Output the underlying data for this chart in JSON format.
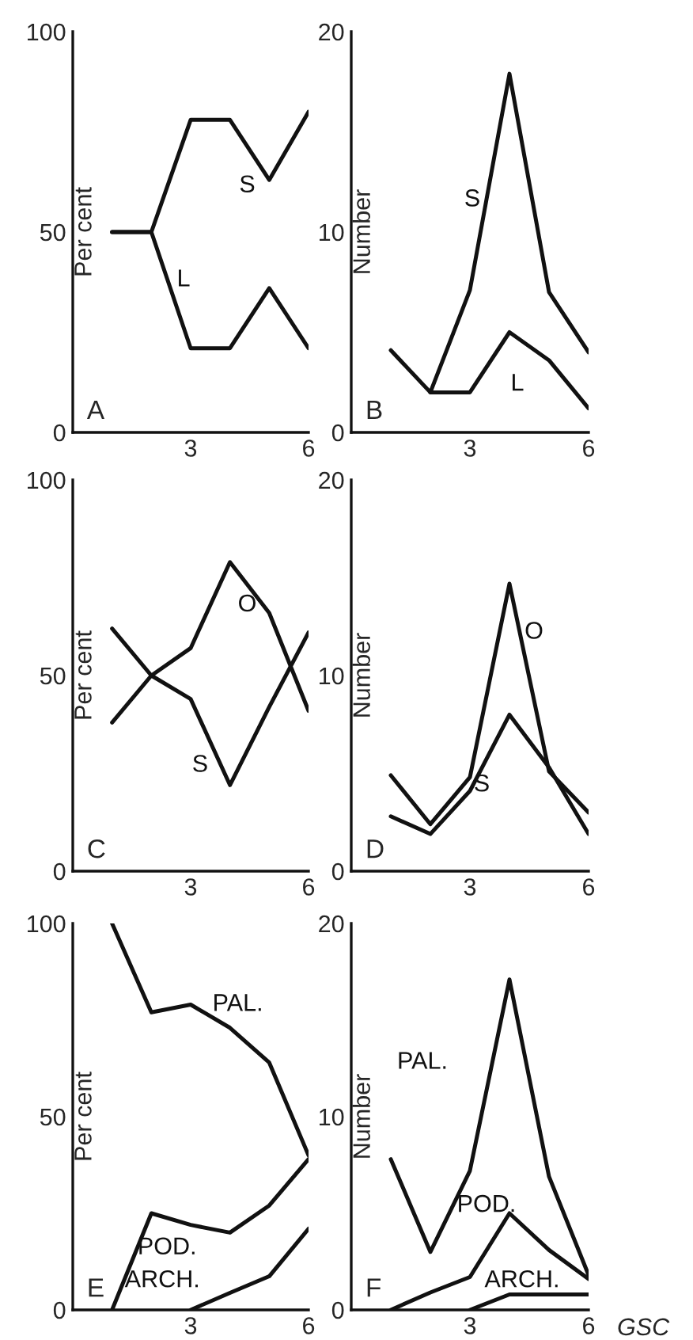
{
  "chart_data": [
    {
      "type": "line",
      "ylabel": "Per cent",
      "x": [
        1,
        2,
        3,
        4,
        5,
        6
      ],
      "xlim": [
        0,
        6
      ],
      "xticks": [
        3,
        6
      ],
      "ylim": [
        0,
        100
      ],
      "yticks": [
        0,
        50,
        100
      ],
      "grid": false,
      "legend": false,
      "annotations": [
        "A"
      ],
      "series": [
        {
          "name": "S",
          "color": "#111111",
          "values": [
            50,
            50,
            78,
            78,
            63,
            80
          ]
        },
        {
          "name": "L",
          "color": "#111111",
          "values": [
            50,
            50,
            21,
            21,
            36,
            21
          ]
        }
      ]
    },
    {
      "type": "line",
      "ylabel": "Number",
      "x": [
        1,
        2,
        3,
        4,
        5,
        6
      ],
      "xlim": [
        0,
        6
      ],
      "xticks": [
        3,
        6
      ],
      "ylim": [
        0,
        20
      ],
      "yticks": [
        0,
        10,
        20
      ],
      "grid": false,
      "legend": false,
      "annotations": [
        "B"
      ],
      "series": [
        {
          "name": "S",
          "color": "#111111",
          "values": [
            null,
            2,
            7.1,
            17.9,
            7,
            4
          ]
        },
        {
          "name": "L",
          "color": "#111111",
          "values": [
            4.1,
            2,
            2,
            5,
            3.6,
            1.2
          ]
        }
      ]
    },
    {
      "type": "line",
      "ylabel": "Per cent",
      "x": [
        1,
        2,
        3,
        4,
        5,
        6
      ],
      "xlim": [
        0,
        6
      ],
      "xticks": [
        3,
        6
      ],
      "ylim": [
        0,
        100
      ],
      "yticks": [
        0,
        50,
        100
      ],
      "grid": false,
      "legend": false,
      "annotations": [
        "C"
      ],
      "series": [
        {
          "name": "O",
          "color": "#111111",
          "values": [
            38,
            50,
            57,
            79,
            66,
            41
          ]
        },
        {
          "name": "S",
          "color": "#111111",
          "values": [
            62,
            50,
            44,
            22,
            42,
            61
          ]
        }
      ]
    },
    {
      "type": "line",
      "ylabel": "Number",
      "x": [
        1,
        2,
        3,
        4,
        5,
        6
      ],
      "xlim": [
        0,
        6
      ],
      "xticks": [
        3,
        6
      ],
      "ylim": [
        0,
        20
      ],
      "yticks": [
        0,
        10,
        20
      ],
      "grid": false,
      "legend": false,
      "annotations": [
        "D"
      ],
      "series": [
        {
          "name": "O",
          "color": "#111111",
          "values": [
            4.9,
            2.4,
            4.8,
            14.7,
            5.1,
            3
          ]
        },
        {
          "name": "S",
          "color": "#111111",
          "values": [
            2.8,
            1.9,
            4.1,
            8,
            5.3,
            1.9
          ]
        }
      ]
    },
    {
      "type": "line",
      "ylabel": "Per cent",
      "x": [
        1,
        2,
        3,
        4,
        5,
        6
      ],
      "xlim": [
        0,
        6
      ],
      "xticks": [
        3,
        6
      ],
      "ylim": [
        0,
        100
      ],
      "yticks": [
        0,
        50,
        100
      ],
      "grid": false,
      "legend": false,
      "annotations": [
        "E"
      ],
      "series": [
        {
          "name": "PAL.",
          "color": "#111111",
          "values": [
            100,
            77,
            79,
            73,
            64,
            40
          ]
        },
        {
          "name": "POD.",
          "color": "#111111",
          "values": [
            0,
            25,
            22,
            20,
            27,
            39
          ]
        },
        {
          "name": "ARCH.",
          "color": "#111111",
          "values": [
            null,
            null,
            0,
            4.4,
            8.7,
            21
          ]
        }
      ]
    },
    {
      "type": "line",
      "ylabel": "Number",
      "x": [
        1,
        2,
        3,
        4,
        5,
        6
      ],
      "xlim": [
        0,
        6
      ],
      "xticks": [
        3,
        6
      ],
      "ylim": [
        0,
        20
      ],
      "yticks": [
        0,
        10,
        20
      ],
      "grid": false,
      "legend": false,
      "annotations": [
        "F",
        "GSC"
      ],
      "series": [
        {
          "name": "PAL.",
          "color": "#111111",
          "values": [
            7.8,
            3,
            7.2,
            17.1,
            6.9,
            1.8
          ]
        },
        {
          "name": "POD.",
          "color": "#111111",
          "values": [
            0,
            0.9,
            1.7,
            5,
            3.1,
            1.6
          ]
        },
        {
          "name": "ARCH.",
          "color": "#111111",
          "values": [
            null,
            null,
            0,
            0.8,
            0.8,
            0.8
          ]
        }
      ]
    }
  ]
}
